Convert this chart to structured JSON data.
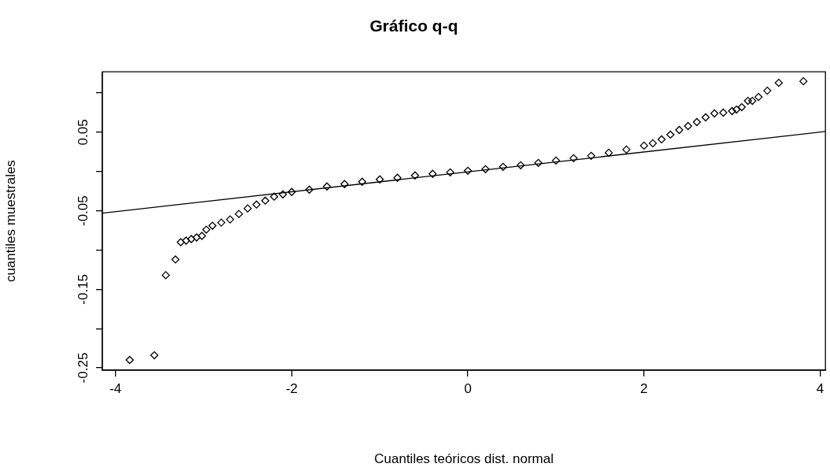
{
  "chart_data": {
    "type": "scatter",
    "title": "Gráfico q-q",
    "xlabel": "Cuantiles teóricos dist. normal",
    "ylabel": "cuantiles muestrales",
    "xlim": [
      -4.15,
      4.06
    ],
    "ylim": [
      -0.253,
      0.127
    ],
    "xticks": [
      -4,
      -2,
      0,
      2,
      4
    ],
    "yticks": [
      {
        "value": 0.1,
        "label": null
      },
      0.05,
      {
        "value": 0,
        "label": null
      },
      -0.05,
      {
        "value": -0.1,
        "label": null
      },
      -0.15,
      {
        "value": -0.2,
        "label": null
      },
      -0.25
    ],
    "grid": false,
    "legend": false,
    "line_style": "solid",
    "series": [
      {
        "marker": "diamond",
        "color": "#000000",
        "x": [
          -3.84,
          -3.56,
          -3.43,
          -3.32,
          -3.26,
          -3.2,
          -3.14,
          -3.08,
          -3.02,
          -2.97,
          -2.9,
          -2.8,
          -2.7,
          -2.6,
          -2.5,
          -2.4,
          -2.3,
          -2.2,
          -2.1,
          -2.0,
          -1.8,
          -1.6,
          -1.4,
          -1.2,
          -1.0,
          -0.8,
          -0.6,
          -0.4,
          -0.2,
          0,
          0.2,
          0.4,
          0.6,
          0.8,
          1.0,
          1.2,
          1.4,
          1.6,
          1.8,
          2.0,
          2.1,
          2.2,
          2.3,
          2.4,
          2.5,
          2.6,
          2.7,
          2.8,
          2.9,
          3.0,
          3.05,
          3.11,
          3.18,
          3.23,
          3.3,
          3.4,
          3.53,
          3.81
        ],
        "values": [
          -0.24,
          -0.234,
          -0.132,
          -0.112,
          -0.09,
          -0.088,
          -0.086,
          -0.084,
          -0.082,
          -0.074,
          -0.069,
          -0.065,
          -0.061,
          -0.054,
          -0.047,
          -0.042,
          -0.037,
          -0.032,
          -0.029,
          -0.026,
          -0.023,
          -0.019,
          -0.016,
          -0.013,
          -0.01,
          -0.008,
          -0.005,
          -0.003,
          -0.001,
          0.001,
          0.003,
          0.006,
          0.008,
          0.011,
          0.014,
          0.017,
          0.02,
          0.024,
          0.028,
          0.033,
          0.036,
          0.041,
          0.047,
          0.053,
          0.058,
          0.063,
          0.069,
          0.074,
          0.075,
          0.077,
          0.079,
          0.082,
          0.09,
          0.09,
          0.095,
          0.103,
          0.113,
          0.115
        ]
      },
      {
        "type": "line",
        "marker": "none",
        "color": "#000000",
        "x": [
          -4.15,
          4.06
        ],
        "values": [
          -0.053,
          0.051
        ]
      }
    ]
  }
}
